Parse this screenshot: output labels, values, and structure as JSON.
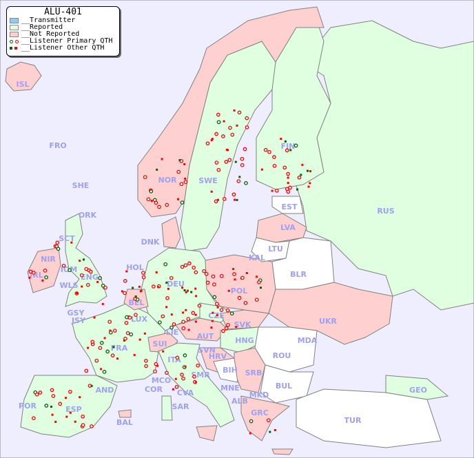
{
  "legend": {
    "title": "ALU-401",
    "items": [
      {
        "label": "__Transmitter",
        "color": "#87cefa"
      },
      {
        "label": "__Reported",
        "color": "#e0ffe0"
      },
      {
        "label": "__Not Reported",
        "color": "#ffd0d0"
      },
      {
        "label": "__Listener Primary QTH",
        "colors": [
          "#006400",
          "#ff0000"
        ]
      },
      {
        "label": "__Listener Other QTH",
        "colors": [
          "#006400",
          "#ff0000"
        ]
      }
    ]
  },
  "colors": {
    "sea": "#eeeeff",
    "reported": "#e0ffe0",
    "not_reported": "#ffd0d0",
    "none": "#ffffff",
    "border": "#808080",
    "label": "#a0a0f0"
  },
  "countries": [
    {
      "code": "ISL",
      "status": "not_reported"
    },
    {
      "code": "FRO",
      "status": "none"
    },
    {
      "code": "SHE",
      "status": "none"
    },
    {
      "code": "ORK",
      "status": "none"
    },
    {
      "code": "NOR",
      "status": "not_reported"
    },
    {
      "code": "SWE",
      "status": "reported"
    },
    {
      "code": "FIN",
      "status": "reported"
    },
    {
      "code": "EST",
      "status": "none"
    },
    {
      "code": "RUS",
      "status": "reported"
    },
    {
      "code": "LVA",
      "status": "not_reported"
    },
    {
      "code": "LTU",
      "status": "none"
    },
    {
      "code": "KAL",
      "status": "none"
    },
    {
      "code": "BLR",
      "status": "none"
    },
    {
      "code": "DNK",
      "status": "not_reported"
    },
    {
      "code": "HOL",
      "status": "reported"
    },
    {
      "code": "DEU",
      "status": "reported"
    },
    {
      "code": "POL",
      "status": "not_reported"
    },
    {
      "code": "UKR",
      "status": "not_reported"
    },
    {
      "code": "IRL",
      "status": "not_reported"
    },
    {
      "code": "NIR",
      "status": "not_reported"
    },
    {
      "code": "SCT",
      "status": "reported"
    },
    {
      "code": "IOM",
      "status": "reported"
    },
    {
      "code": "WLS",
      "status": "reported"
    },
    {
      "code": "ENG",
      "status": "reported"
    },
    {
      "code": "BEL",
      "status": "not_reported"
    },
    {
      "code": "GSY",
      "status": "reported"
    },
    {
      "code": "JSY",
      "status": "reported"
    },
    {
      "code": "LUX",
      "status": "reported"
    },
    {
      "code": "CZE",
      "status": "reported"
    },
    {
      "code": "SVK",
      "status": "not_reported"
    },
    {
      "code": "AUT",
      "status": "not_reported"
    },
    {
      "code": "LIE",
      "status": "reported"
    },
    {
      "code": "SUI",
      "status": "not_reported"
    },
    {
      "code": "HNG",
      "status": "reported"
    },
    {
      "code": "MDA",
      "status": "not_reported"
    },
    {
      "code": "ROU",
      "status": "none"
    },
    {
      "code": "FRA",
      "status": "reported"
    },
    {
      "code": "SVN",
      "status": "reported"
    },
    {
      "code": "HRV",
      "status": "not_reported"
    },
    {
      "code": "BIH",
      "status": "none"
    },
    {
      "code": "SRB",
      "status": "not_reported"
    },
    {
      "code": "BUL",
      "status": "none"
    },
    {
      "code": "ITA",
      "status": "reported"
    },
    {
      "code": "SMR",
      "status": "reported"
    },
    {
      "code": "MCO",
      "status": "reported"
    },
    {
      "code": "COR",
      "status": "reported"
    },
    {
      "code": "CVA",
      "status": "reported"
    },
    {
      "code": "MNE",
      "status": "reported"
    },
    {
      "code": "ALB",
      "status": "reported"
    },
    {
      "code": "MKD",
      "status": "not_reported"
    },
    {
      "code": "GRC",
      "status": "not_reported"
    },
    {
      "code": "TUR",
      "status": "none"
    },
    {
      "code": "GEO",
      "status": "reported"
    },
    {
      "code": "AND",
      "status": "reported"
    },
    {
      "code": "POR",
      "status": "reported"
    },
    {
      "code": "ESP",
      "status": "reported"
    },
    {
      "code": "BAL",
      "status": "not_reported"
    },
    {
      "code": "SAR",
      "status": "reported"
    }
  ]
}
